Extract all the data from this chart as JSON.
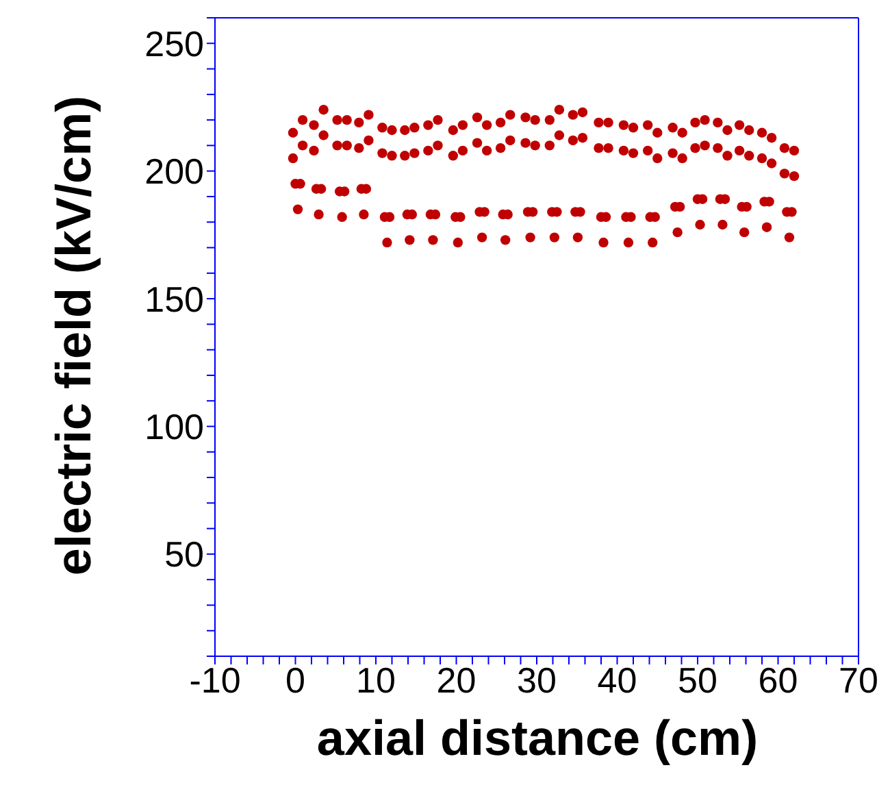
{
  "chart_data": {
    "type": "scatter",
    "xlabel": "axial distance (cm)",
    "ylabel": "electric field (kV/cm)",
    "marker": "circle",
    "xlim": [
      -10,
      70
    ],
    "ylim": [
      10,
      260
    ],
    "xticks": [
      -10,
      {
        "value": -8,
        "label": null
      },
      {
        "value": -6,
        "label": null
      },
      {
        "value": -4,
        "label": null
      },
      {
        "value": -2,
        "label": null
      },
      0,
      {
        "value": 2,
        "label": null
      },
      {
        "value": 4,
        "label": null
      },
      {
        "value": 6,
        "label": null
      },
      {
        "value": 8,
        "label": null
      },
      10,
      {
        "value": 12,
        "label": null
      },
      {
        "value": 14,
        "label": null
      },
      {
        "value": 16,
        "label": null
      },
      {
        "value": 18,
        "label": null
      },
      20,
      {
        "value": 22,
        "label": null
      },
      {
        "value": 24,
        "label": null
      },
      {
        "value": 26,
        "label": null
      },
      {
        "value": 28,
        "label": null
      },
      30,
      {
        "value": 32,
        "label": null
      },
      {
        "value": 34,
        "label": null
      },
      {
        "value": 36,
        "label": null
      },
      {
        "value": 38,
        "label": null
      },
      40,
      {
        "value": 42,
        "label": null
      },
      {
        "value": 44,
        "label": null
      },
      {
        "value": 46,
        "label": null
      },
      {
        "value": 48,
        "label": null
      },
      50,
      {
        "value": 52,
        "label": null
      },
      {
        "value": 54,
        "label": null
      },
      {
        "value": 56,
        "label": null
      },
      {
        "value": 58,
        "label": null
      },
      60,
      {
        "value": 62,
        "label": null
      },
      {
        "value": 64,
        "label": null
      },
      {
        "value": 66,
        "label": null
      },
      {
        "value": 68,
        "label": null
      },
      70
    ],
    "yticks": [
      {
        "value": 10,
        "label": null
      },
      {
        "value": 20,
        "label": null
      },
      {
        "value": 30,
        "label": null
      },
      {
        "value": 40,
        "label": null
      },
      50,
      {
        "value": 60,
        "label": null
      },
      {
        "value": 70,
        "label": null
      },
      {
        "value": 80,
        "label": null
      },
      {
        "value": 90,
        "label": null
      },
      100,
      {
        "value": 110,
        "label": null
      },
      {
        "value": 120,
        "label": null
      },
      {
        "value": 130,
        "label": null
      },
      {
        "value": 140,
        "label": null
      },
      150,
      {
        "value": 160,
        "label": null
      },
      {
        "value": 170,
        "label": null
      },
      {
        "value": 180,
        "label": null
      },
      {
        "value": 190,
        "label": null
      },
      200,
      {
        "value": 210,
        "label": null
      },
      {
        "value": 220,
        "label": null
      },
      {
        "value": 230,
        "label": null
      },
      {
        "value": 240,
        "label": null
      },
      250,
      {
        "value": 260,
        "label": null
      }
    ],
    "series": [
      {
        "color": "#c00000",
        "x": [
          -0.3,
          -0.3,
          0,
          0.3,
          0.6,
          0.9,
          0.9,
          2.3,
          2.3,
          2.6,
          2.9,
          3.2,
          3.5,
          3.5,
          5.2,
          5.2,
          5.5,
          5.8,
          6.1,
          6.4,
          6.4,
          7.9,
          7.9,
          8.2,
          8.5,
          8.8,
          9.1,
          9.1,
          10.8,
          10.8,
          11.1,
          11.4,
          11.7,
          12,
          12,
          13.6,
          13.6,
          13.9,
          14.2,
          14.5,
          14.8,
          14.8,
          16.5,
          16.5,
          16.8,
          17.1,
          17.4,
          17.7,
          17.7,
          19.6,
          19.6,
          19.9,
          20.2,
          20.5,
          20.8,
          20.8,
          22.6,
          22.6,
          22.9,
          23.2,
          23.5,
          23.8,
          23.8,
          25.5,
          25.5,
          25.8,
          26.1,
          26.4,
          26.7,
          26.7,
          28.6,
          28.6,
          28.9,
          29.2,
          29.5,
          29.8,
          29.8,
          31.6,
          31.6,
          31.9,
          32.2,
          32.5,
          32.8,
          32.8,
          34.5,
          34.5,
          34.8,
          35.1,
          35.4,
          35.7,
          35.7,
          37.7,
          37.7,
          38,
          38.3,
          38.6,
          38.9,
          38.9,
          40.8,
          40.8,
          41.1,
          41.4,
          41.7,
          42,
          42,
          43.8,
          43.8,
          44.1,
          44.4,
          44.7,
          45,
          45,
          46.9,
          46.9,
          47.2,
          47.5,
          47.8,
          48.1,
          48.1,
          49.7,
          49.7,
          50,
          50.3,
          50.6,
          50.9,
          50.9,
          52.5,
          52.5,
          52.8,
          53.1,
          53.4,
          53.7,
          53.7,
          55.2,
          55.2,
          55.5,
          55.8,
          56.1,
          56.4,
          56.4,
          58,
          58,
          58.3,
          58.6,
          58.9,
          59.2,
          59.2,
          60.8,
          60.8,
          61.1,
          61.4,
          61.7,
          62,
          62
        ],
        "values": [
          215,
          205,
          195,
          185,
          195,
          210,
          220,
          218,
          208,
          193,
          183,
          193,
          214,
          224,
          220,
          210,
          192,
          182,
          192,
          210,
          220,
          219,
          209,
          193,
          183,
          193,
          212,
          222,
          217,
          207,
          182,
          172,
          182,
          206,
          216,
          216,
          206,
          183,
          173,
          183,
          207,
          217,
          218,
          208,
          183,
          173,
          183,
          210,
          220,
          216,
          206,
          182,
          172,
          182,
          208,
          218,
          221,
          211,
          184,
          174,
          184,
          208,
          218,
          219,
          209,
          183,
          173,
          183,
          212,
          222,
          221,
          211,
          184,
          174,
          184,
          210,
          220,
          220,
          210,
          184,
          174,
          184,
          214,
          224,
          222,
          212,
          184,
          174,
          184,
          213,
          223,
          219,
          209,
          182,
          172,
          182,
          209,
          219,
          218,
          208,
          182,
          172,
          182,
          207,
          217,
          218,
          208,
          182,
          172,
          182,
          205,
          215,
          217,
          207,
          186,
          176,
          186,
          205,
          215,
          219,
          209,
          189,
          179,
          189,
          210,
          220,
          219,
          209,
          189,
          179,
          189,
          206,
          216,
          218,
          208,
          186,
          176,
          186,
          206,
          216,
          215,
          205,
          188,
          178,
          188,
          203,
          213,
          209,
          199,
          184,
          174,
          184,
          198,
          208
        ]
      }
    ]
  }
}
